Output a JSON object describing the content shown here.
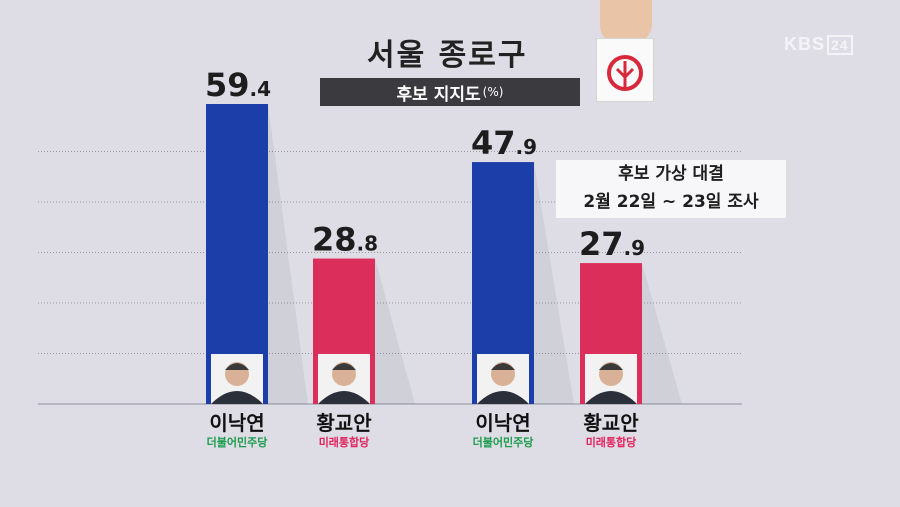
{
  "title": "서울 종로구",
  "subtitle": "후보 지지도",
  "subtitle_unit": "(%)",
  "broadcaster": {
    "name": "KBS",
    "channel": "24"
  },
  "note": {
    "line1": "후보 가상 대결",
    "line2": "2월 22일 ~ 23일 조사"
  },
  "colors": {
    "blue": "#1c3ea8",
    "red": "#dc2e5a",
    "background": "#dedde6",
    "dark_box": "#3a3a3f"
  },
  "chart_data": {
    "type": "bar",
    "ylim": [
      0,
      60
    ],
    "grid": true,
    "groups": [
      {
        "bars": [
          {
            "candidate": "이낙연",
            "party": "더불어민주당",
            "value": 59.4,
            "int": "59",
            "dec": "4",
            "color": "#1c3ea8",
            "party_color": "#1a9b4a"
          },
          {
            "candidate": "황교안",
            "party": "미래통합당",
            "value": 28.8,
            "int": "28",
            "dec": "8",
            "color": "#dc2e5a",
            "party_color": "#e0245e"
          }
        ]
      },
      {
        "bars": [
          {
            "candidate": "이낙연",
            "party": "더불어민주당",
            "value": 47.9,
            "int": "47",
            "dec": "9",
            "color": "#1c3ea8",
            "party_color": "#1a9b4a"
          },
          {
            "candidate": "황교안",
            "party": "미래통합당",
            "value": 27.9,
            "int": "27",
            "dec": "9",
            "color": "#dc2e5a",
            "party_color": "#e0245e"
          }
        ]
      }
    ]
  }
}
